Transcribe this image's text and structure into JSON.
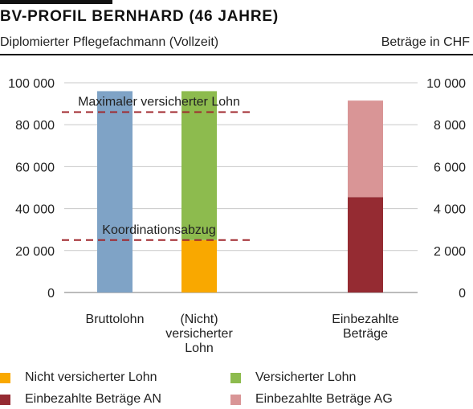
{
  "header": {
    "title": "BV-PROFIL BERNHARD (46 JAHRE)",
    "subtitle": "Diplomierter Pflegefachmann (Vollzeit)",
    "units": "Beträge in CHF"
  },
  "colors": {
    "brutto": "#7fa3c6",
    "nicht_versichert": "#f9a800",
    "versichert": "#8dbb4e",
    "an": "#952b32",
    "ag": "#d99596",
    "refline": "#a0282e",
    "grid": "#c8c8c8"
  },
  "chart_data": {
    "type": "bar",
    "left_axis": {
      "ylim": [
        0,
        100000
      ],
      "ticks": [
        "0",
        "20 000",
        "40 000",
        "60 000",
        "80 000",
        "100 000"
      ],
      "tick_values": [
        0,
        20000,
        40000,
        60000,
        80000,
        100000
      ]
    },
    "right_axis": {
      "ylim": [
        0,
        10000
      ],
      "ticks": [
        "0",
        "2 000",
        "4 000",
        "6 000",
        "8 000",
        "10 000"
      ],
      "tick_values": [
        0,
        2000,
        4000,
        6000,
        8000,
        10000
      ]
    },
    "grid": true,
    "categories": [
      {
        "lines": [
          "Bruttolohn"
        ]
      },
      {
        "lines": [
          "(Nicht)",
          "versicherter",
          "Lohn"
        ]
      },
      {
        "lines": [
          "Einbezahlte",
          "Beträge"
        ]
      }
    ],
    "bars": [
      {
        "category": 0,
        "axis": "left",
        "segments": [
          {
            "series": "brutto",
            "value": 96000
          }
        ]
      },
      {
        "category": 1,
        "axis": "left",
        "segments": [
          {
            "series": "nicht_versichert",
            "value": 25000
          },
          {
            "series": "versichert",
            "value": 71000
          }
        ]
      },
      {
        "category": 2,
        "axis": "right",
        "segments": [
          {
            "series": "an",
            "value": 4550
          },
          {
            "series": "ag",
            "value": 4600
          }
        ]
      }
    ],
    "reference_lines": [
      {
        "label": "Maximaler versicherter Lohn",
        "value": 86000
      },
      {
        "label": "Koordinationsabzug",
        "value": 25000
      }
    ],
    "legend": [
      {
        "series": "nicht_versichert",
        "label": "Nicht versicherter Lohn"
      },
      {
        "series": "versichert",
        "label": "Versicherter Lohn"
      },
      {
        "series": "an",
        "label": "Einbezahlte Beträge AN"
      },
      {
        "series": "ag",
        "label": "Einbezahlte Beträge AG"
      }
    ],
    "legend_position": "bottom"
  }
}
